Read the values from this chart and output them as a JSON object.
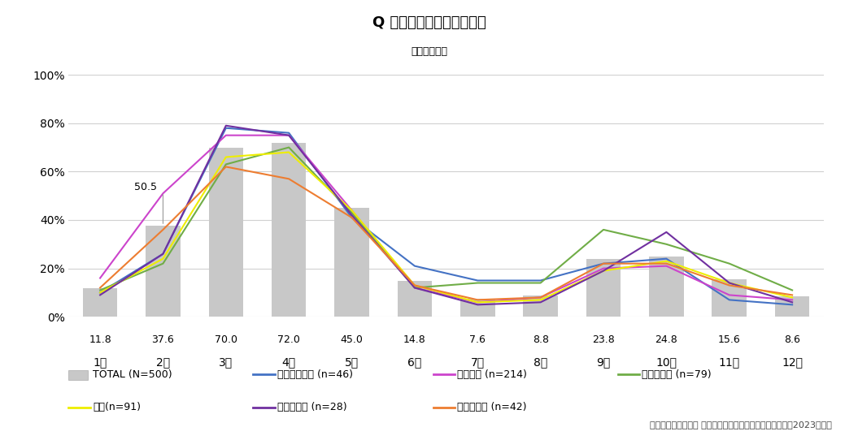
{
  "title": "Q 花粉症の症状が出る時期",
  "subtitle": "（複数回答）",
  "months": [
    "1月",
    "2月",
    "3月",
    "4月",
    "5月",
    "6月",
    "7月",
    "8月",
    "9月",
    "10月",
    "11月",
    "12月"
  ],
  "bar_values": [
    11.8,
    37.6,
    70.0,
    72.0,
    45.0,
    14.8,
    7.6,
    8.8,
    23.8,
    24.8,
    15.6,
    8.6
  ],
  "bar_color": "#c8c8c8",
  "annotation_text": "50.5",
  "annotation_month_index": 1,
  "series": [
    {
      "label": "北海道・東北 (n=46)",
      "color": "#4472c4",
      "values": [
        10.0,
        26.0,
        78.0,
        76.0,
        41.0,
        21.0,
        15.0,
        15.0,
        22.0,
        24.0,
        7.0,
        5.0
      ]
    },
    {
      "label": "関東甲信 (n=214)",
      "color": "#cc44cc",
      "values": [
        16.0,
        51.0,
        75.0,
        75.0,
        44.0,
        12.0,
        6.0,
        8.0,
        20.0,
        21.0,
        9.0,
        7.0
      ]
    },
    {
      "label": "東海・北陸 (n=79)",
      "color": "#70ad47",
      "values": [
        11.0,
        22.0,
        63.0,
        70.0,
        43.0,
        12.0,
        14.0,
        14.0,
        36.0,
        30.0,
        22.0,
        11.0
      ]
    },
    {
      "label": "近畑(n=91)",
      "color": "#eeee00",
      "values": [
        10.0,
        24.0,
        66.0,
        68.0,
        44.0,
        13.0,
        6.0,
        7.0,
        19.0,
        23.0,
        14.0,
        8.0
      ]
    },
    {
      "label": "中国・四国 (n=28)",
      "color": "#7030a0",
      "values": [
        9.0,
        26.0,
        79.0,
        75.0,
        42.0,
        12.0,
        5.0,
        6.0,
        19.0,
        35.0,
        14.0,
        6.0
      ]
    },
    {
      "label": "九州・沖縄 (n=42)",
      "color": "#ed7d31",
      "values": [
        12.0,
        36.0,
        62.0,
        57.0,
        41.0,
        13.0,
        7.0,
        8.0,
        22.0,
        22.0,
        13.0,
        9.0
      ]
    }
  ],
  "ylim": [
    0,
    100
  ],
  "yticks": [
    0,
    20,
    40,
    60,
    80,
    100
  ],
  "ytick_labels": [
    "0%",
    "20%",
    "40%",
    "60%",
    "80%",
    "100%"
  ],
  "source_text": "積水ハウス株式会社 住生活研究所「花粉に関する調査　（2023年）」",
  "background_color": "#ffffff"
}
